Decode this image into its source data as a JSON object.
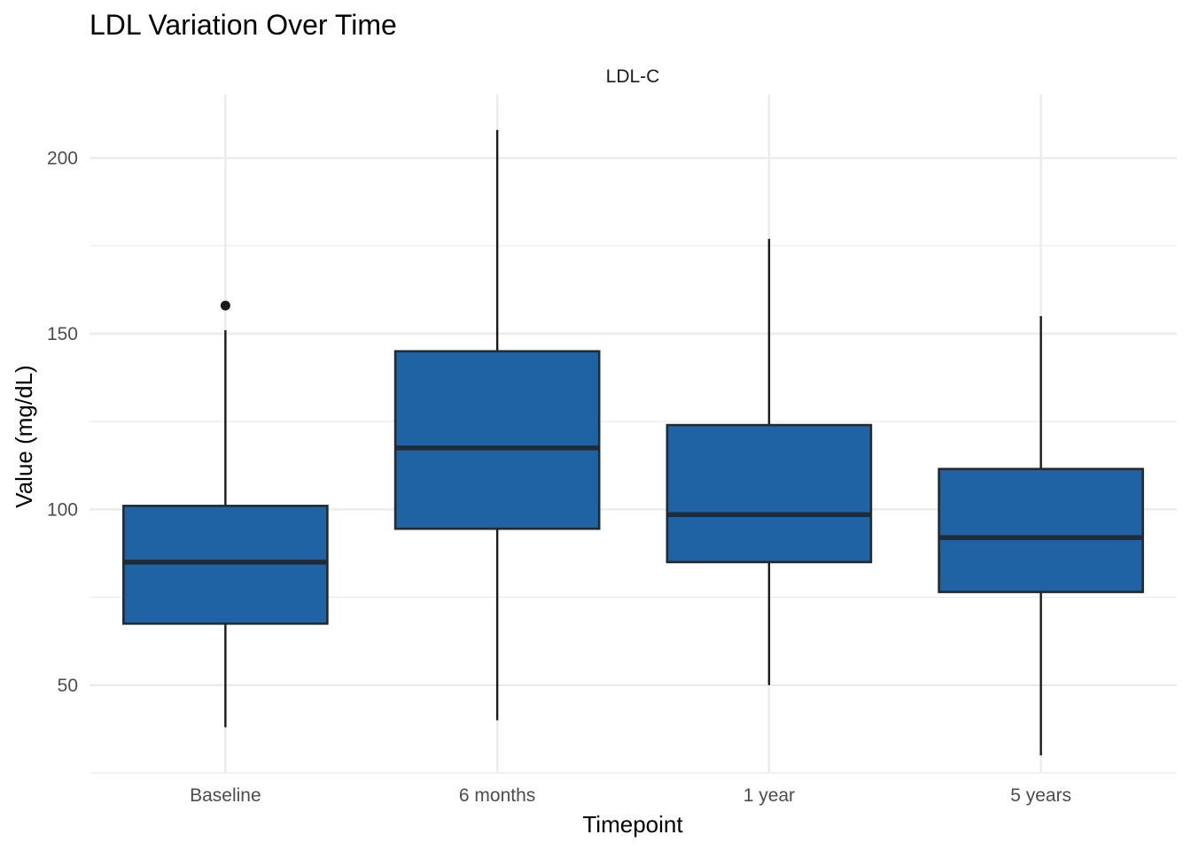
{
  "chart_data": {
    "type": "box",
    "title": "LDL Variation Over Time",
    "facet_label": "LDL-C",
    "xlabel": "Timepoint",
    "ylabel": "Value (mg/dL)",
    "ylim": [
      25,
      218
    ],
    "yticks": [
      50,
      100,
      150,
      200
    ],
    "y_minor_ticks": [
      25,
      75,
      125,
      175
    ],
    "grid": true,
    "legend": "none",
    "colors": {
      "box_fill": "#1f63a4",
      "box_stroke": "#222a33",
      "whisker": "#1a1a1a",
      "outlier": "#1a1a1a",
      "grid": "#ebebeb"
    },
    "categories": [
      "Baseline",
      "6 months",
      "1 year",
      "5 years"
    ],
    "boxes": [
      {
        "category": "Baseline",
        "whisker_low": 38,
        "q1": 67.5,
        "median": 85,
        "q3": 101,
        "whisker_high": 151,
        "outliers": [
          158
        ]
      },
      {
        "category": "6 months",
        "whisker_low": 40,
        "q1": 94.5,
        "median": 117.5,
        "q3": 145,
        "whisker_high": 208,
        "outliers": []
      },
      {
        "category": "1 year",
        "whisker_low": 50,
        "q1": 85,
        "median": 98.5,
        "q3": 124,
        "whisker_high": 177,
        "outliers": []
      },
      {
        "category": "5 years",
        "whisker_low": 30,
        "q1": 76.5,
        "median": 92,
        "q3": 111.5,
        "whisker_high": 155,
        "outliers": []
      }
    ]
  }
}
